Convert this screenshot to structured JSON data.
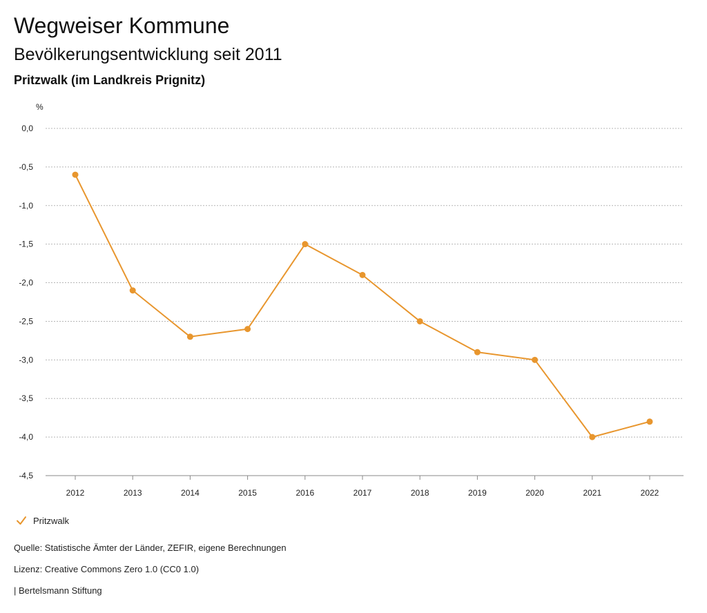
{
  "header": {
    "title": "Wegweiser Kommune",
    "subtitle": "Bevölkerungsentwicklung seit 2011",
    "region": "Pritzwalk (im Landkreis Prignitz)"
  },
  "chart_data": {
    "type": "line",
    "title": "Bevölkerungsentwicklung seit 2011",
    "ylabel": "%",
    "xlabel": "",
    "ylim": [
      -4.5,
      0
    ],
    "ytick_values": [
      0,
      -0.5,
      -1,
      -1.5,
      -2,
      -2.5,
      -3,
      -3.5,
      -4,
      -4.5
    ],
    "ytick_labels": [
      "0,0",
      "-0,5",
      "-1,0",
      "-1,5",
      "-2,0",
      "-2,5",
      "-3,0",
      "-3,5",
      "-4,0",
      "-4,5"
    ],
    "categories": [
      "2012",
      "2013",
      "2014",
      "2015",
      "2016",
      "2017",
      "2018",
      "2019",
      "2020",
      "2021",
      "2022"
    ],
    "series": [
      {
        "name": "Pritzwalk",
        "color": "#e8962e",
        "values": [
          -0.6,
          -2.1,
          -2.7,
          -2.6,
          -1.5,
          -1.9,
          -2.5,
          -2.9,
          -3.0,
          -4.0,
          -3.8
        ]
      }
    ],
    "grid": true,
    "legend_position": "bottom-left"
  },
  "footer": {
    "source": "Quelle: Statistische Ämter der Länder, ZEFIR, eigene Berechnungen",
    "license": "Lizenz: Creative Commons Zero 1.0 (CC0 1.0)",
    "organization": "| Bertelsmann Stiftung"
  },
  "icons": {
    "legend": "check-mark-icon"
  }
}
